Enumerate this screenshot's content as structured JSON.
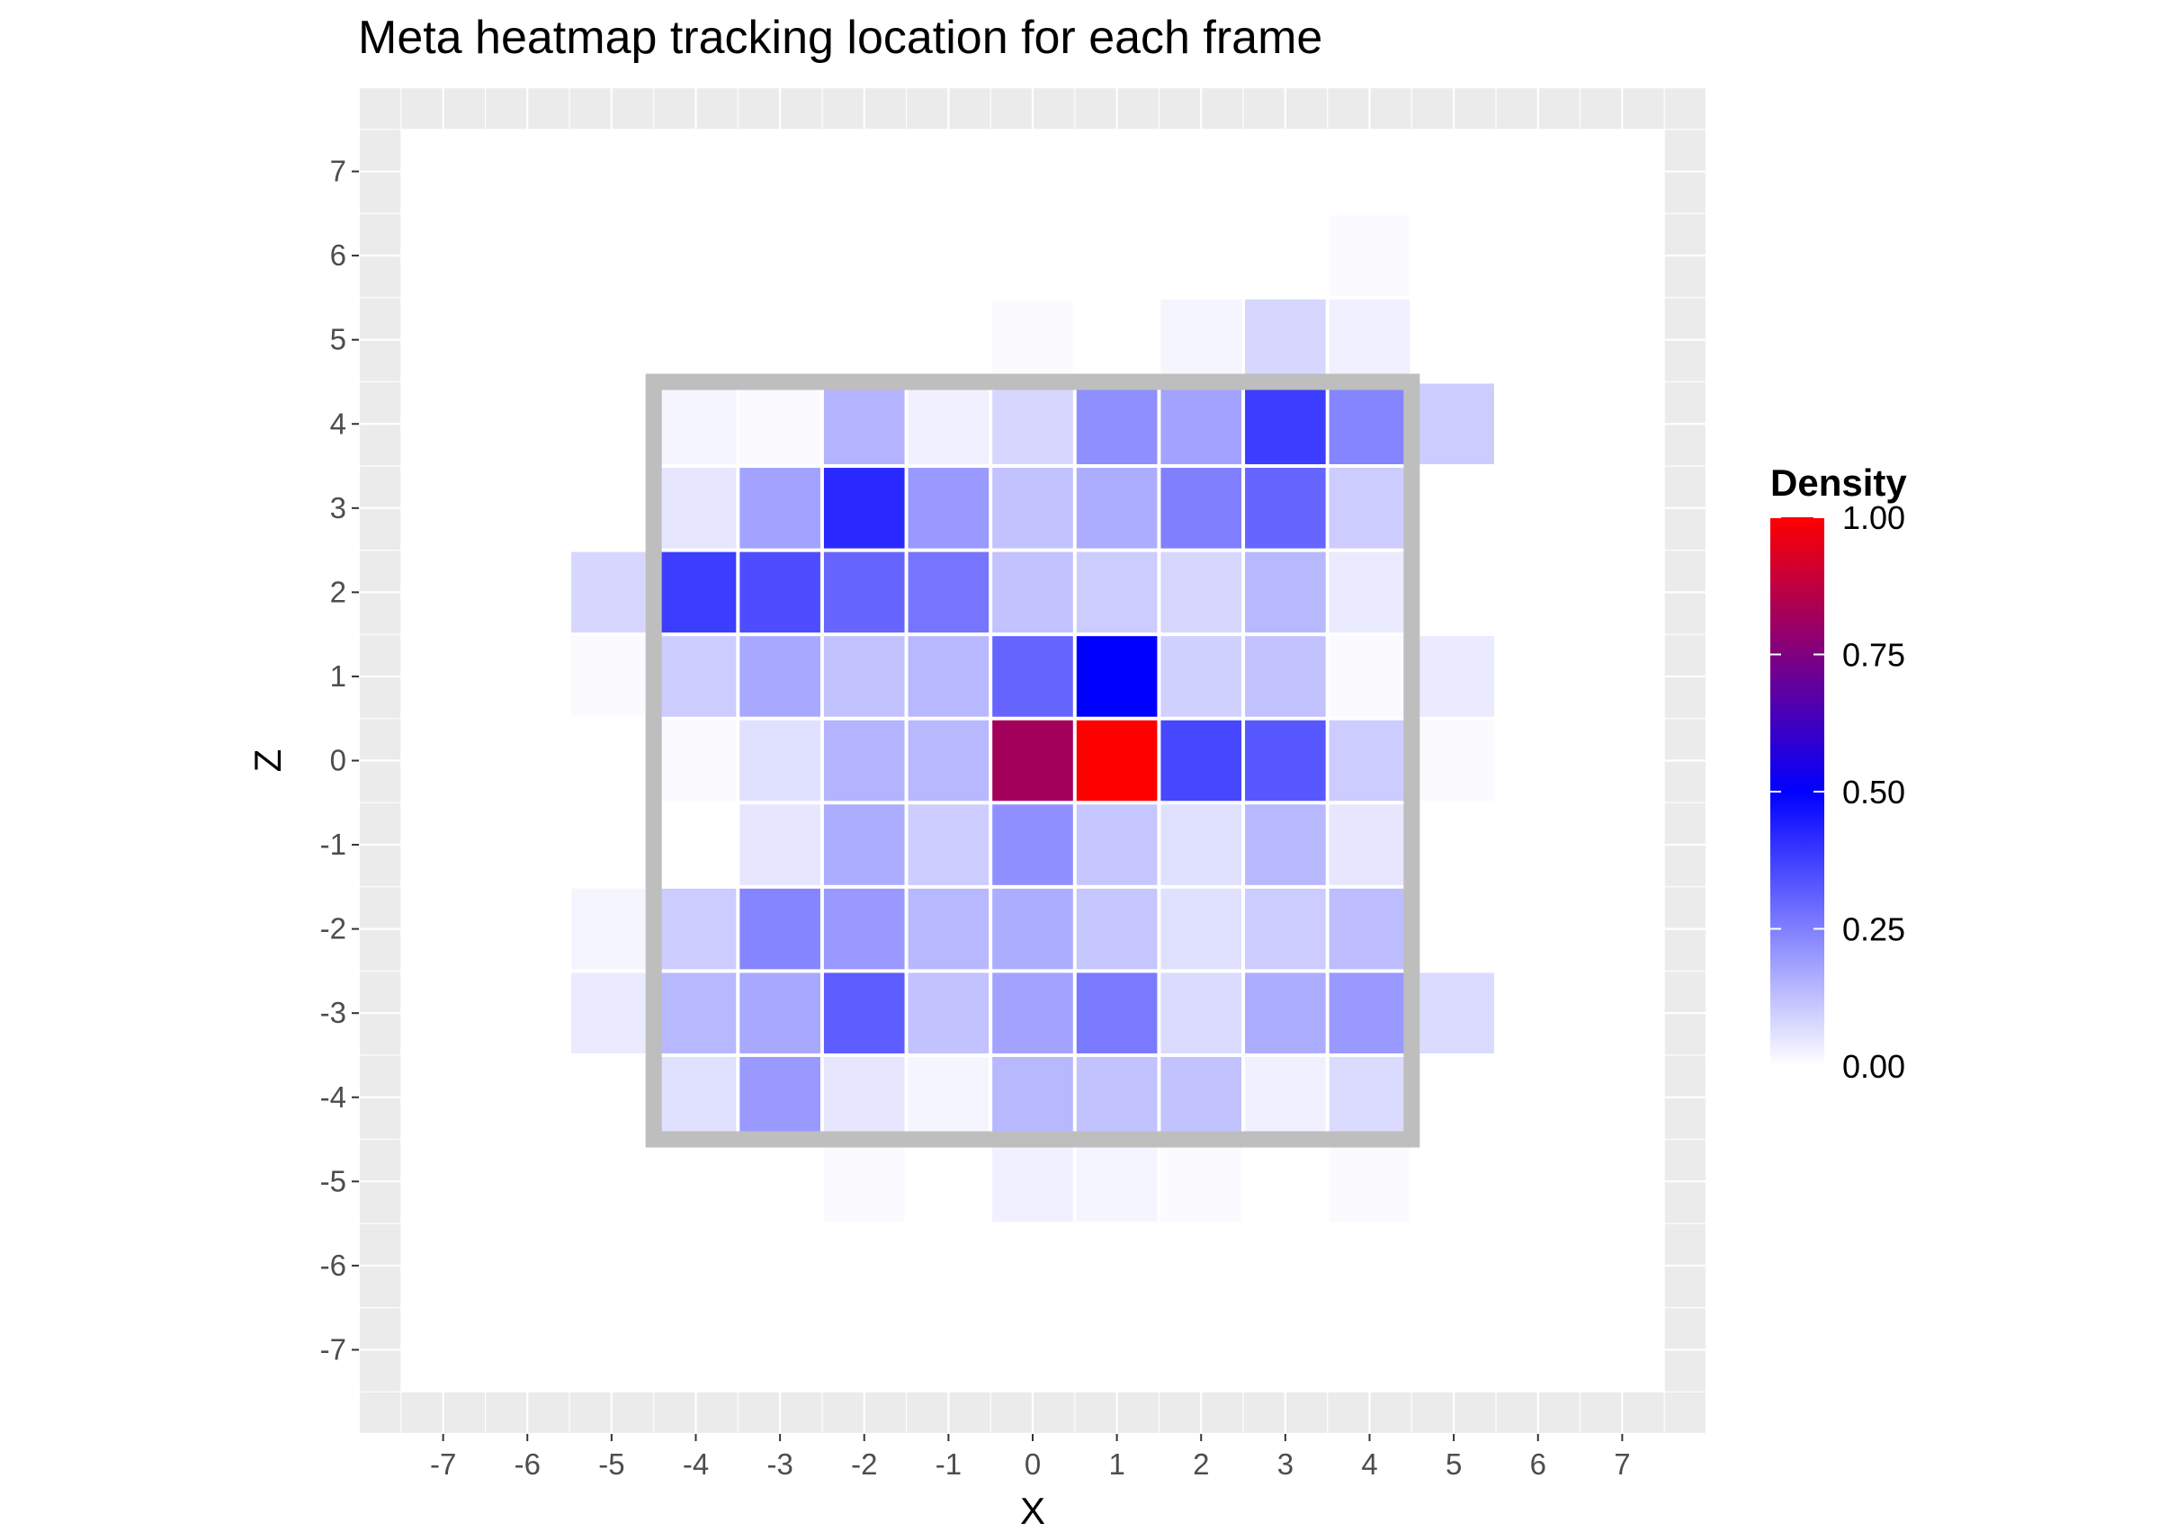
{
  "chart_data": {
    "type": "heatmap",
    "title": "Meta heatmap tracking location for each frame",
    "xlabel": "X",
    "ylabel": "Z",
    "xlim": [
      -8,
      8
    ],
    "ylim": [
      -8,
      8
    ],
    "x_ticks": [
      "-7",
      "-6",
      "-5",
      "-4",
      "-3",
      "-2",
      "-1",
      "0",
      "1",
      "2",
      "3",
      "4",
      "5",
      "6",
      "7"
    ],
    "y_ticks": [
      "7",
      "6",
      "5",
      "4",
      "3",
      "2",
      "1",
      "0",
      "-1",
      "-2",
      "-3",
      "-4",
      "-5",
      "-6",
      "-7"
    ],
    "grid": true,
    "legend": {
      "title": "Density",
      "placement": "right",
      "labels": [
        "1.00",
        "0.75",
        "0.50",
        "0.25",
        "0.00"
      ],
      "colors": [
        "#ffffff",
        "#0000ff",
        "#ff0000"
      ]
    },
    "arena_region": {
      "xmin": -4.5,
      "xmax": 4.5,
      "zmin": -4.5,
      "zmax": 4.5,
      "color": "#bebebe"
    },
    "panel_background": "#ebebeb",
    "inner_background": "#ffffff",
    "cells": [
      {
        "x": 4,
        "z": 6,
        "v": 0.01
      },
      {
        "x": 0,
        "z": 5,
        "v": 0.01
      },
      {
        "x": 2,
        "z": 5,
        "v": 0.02
      },
      {
        "x": 3,
        "z": 5,
        "v": 0.08
      },
      {
        "x": 4,
        "z": 5,
        "v": 0.03
      },
      {
        "x": -4,
        "z": 4,
        "v": 0.02
      },
      {
        "x": -3,
        "z": 4,
        "v": 0.01
      },
      {
        "x": -2,
        "z": 4,
        "v": 0.15
      },
      {
        "x": -1,
        "z": 4,
        "v": 0.03
      },
      {
        "x": 0,
        "z": 4,
        "v": 0.08
      },
      {
        "x": 1,
        "z": 4,
        "v": 0.22
      },
      {
        "x": 2,
        "z": 4,
        "v": 0.18
      },
      {
        "x": 3,
        "z": 4,
        "v": 0.38
      },
      {
        "x": 4,
        "z": 4,
        "v": 0.24
      },
      {
        "x": 5,
        "z": 4,
        "v": 0.1
      },
      {
        "x": -4,
        "z": 3,
        "v": 0.05
      },
      {
        "x": -3,
        "z": 3,
        "v": 0.18
      },
      {
        "x": -2,
        "z": 3,
        "v": 0.42
      },
      {
        "x": -1,
        "z": 3,
        "v": 0.2
      },
      {
        "x": 0,
        "z": 3,
        "v": 0.12
      },
      {
        "x": 1,
        "z": 3,
        "v": 0.16
      },
      {
        "x": 2,
        "z": 3,
        "v": 0.25
      },
      {
        "x": 3,
        "z": 3,
        "v": 0.3
      },
      {
        "x": 4,
        "z": 3,
        "v": 0.1
      },
      {
        "x": -5,
        "z": 2,
        "v": 0.08
      },
      {
        "x": -4,
        "z": 2,
        "v": 0.38
      },
      {
        "x": -3,
        "z": 2,
        "v": 0.35
      },
      {
        "x": -2,
        "z": 2,
        "v": 0.3
      },
      {
        "x": -1,
        "z": 2,
        "v": 0.27
      },
      {
        "x": 0,
        "z": 2,
        "v": 0.12
      },
      {
        "x": 1,
        "z": 2,
        "v": 0.1
      },
      {
        "x": 2,
        "z": 2,
        "v": 0.08
      },
      {
        "x": 3,
        "z": 2,
        "v": 0.14
      },
      {
        "x": 4,
        "z": 2,
        "v": 0.04
      },
      {
        "x": -5,
        "z": 1,
        "v": 0.01
      },
      {
        "x": -4,
        "z": 1,
        "v": 0.1
      },
      {
        "x": -3,
        "z": 1,
        "v": 0.17
      },
      {
        "x": -2,
        "z": 1,
        "v": 0.12
      },
      {
        "x": -1,
        "z": 1,
        "v": 0.14
      },
      {
        "x": 0,
        "z": 1,
        "v": 0.3
      },
      {
        "x": 1,
        "z": 1,
        "v": 0.5
      },
      {
        "x": 2,
        "z": 1,
        "v": 0.09
      },
      {
        "x": 3,
        "z": 1,
        "v": 0.12
      },
      {
        "x": 4,
        "z": 1,
        "v": 0.01
      },
      {
        "x": 5,
        "z": 1,
        "v": 0.04
      },
      {
        "x": -4,
        "z": 0,
        "v": 0.01
      },
      {
        "x": -3,
        "z": 0,
        "v": 0.06
      },
      {
        "x": -2,
        "z": 0,
        "v": 0.15
      },
      {
        "x": -1,
        "z": 0,
        "v": 0.14
      },
      {
        "x": 0,
        "z": 0,
        "v": 0.82
      },
      {
        "x": 1,
        "z": 0,
        "v": 1.0
      },
      {
        "x": 2,
        "z": 0,
        "v": 0.36
      },
      {
        "x": 3,
        "z": 0,
        "v": 0.33
      },
      {
        "x": 4,
        "z": 0,
        "v": 0.1
      },
      {
        "x": 5,
        "z": 0,
        "v": 0.01
      },
      {
        "x": -3,
        "z": -1,
        "v": 0.05
      },
      {
        "x": -2,
        "z": -1,
        "v": 0.16
      },
      {
        "x": -1,
        "z": -1,
        "v": 0.1
      },
      {
        "x": 0,
        "z": -1,
        "v": 0.22
      },
      {
        "x": 1,
        "z": -1,
        "v": 0.11
      },
      {
        "x": 2,
        "z": -1,
        "v": 0.06
      },
      {
        "x": 3,
        "z": -1,
        "v": 0.14
      },
      {
        "x": 4,
        "z": -1,
        "v": 0.05
      },
      {
        "x": -5,
        "z": -2,
        "v": 0.02
      },
      {
        "x": -4,
        "z": -2,
        "v": 0.1
      },
      {
        "x": -3,
        "z": -2,
        "v": 0.24
      },
      {
        "x": -2,
        "z": -2,
        "v": 0.2
      },
      {
        "x": -1,
        "z": -2,
        "v": 0.14
      },
      {
        "x": 0,
        "z": -2,
        "v": 0.16
      },
      {
        "x": 1,
        "z": -2,
        "v": 0.11
      },
      {
        "x": 2,
        "z": -2,
        "v": 0.06
      },
      {
        "x": 3,
        "z": -2,
        "v": 0.1
      },
      {
        "x": 4,
        "z": -2,
        "v": 0.13
      },
      {
        "x": -5,
        "z": -3,
        "v": 0.04
      },
      {
        "x": -4,
        "z": -3,
        "v": 0.14
      },
      {
        "x": -3,
        "z": -3,
        "v": 0.17
      },
      {
        "x": -2,
        "z": -3,
        "v": 0.32
      },
      {
        "x": -1,
        "z": -3,
        "v": 0.12
      },
      {
        "x": 0,
        "z": -3,
        "v": 0.18
      },
      {
        "x": 1,
        "z": -3,
        "v": 0.26
      },
      {
        "x": 2,
        "z": -3,
        "v": 0.07
      },
      {
        "x": 3,
        "z": -3,
        "v": 0.16
      },
      {
        "x": 4,
        "z": -3,
        "v": 0.2
      },
      {
        "x": 5,
        "z": -3,
        "v": 0.07
      },
      {
        "x": -4,
        "z": -4,
        "v": 0.06
      },
      {
        "x": -3,
        "z": -4,
        "v": 0.2
      },
      {
        "x": -2,
        "z": -4,
        "v": 0.05
      },
      {
        "x": -1,
        "z": -4,
        "v": 0.02
      },
      {
        "x": 0,
        "z": -4,
        "v": 0.14
      },
      {
        "x": 1,
        "z": -4,
        "v": 0.12
      },
      {
        "x": 2,
        "z": -4,
        "v": 0.12
      },
      {
        "x": 3,
        "z": -4,
        "v": 0.03
      },
      {
        "x": 4,
        "z": -4,
        "v": 0.07
      },
      {
        "x": -2,
        "z": -5,
        "v": 0.01
      },
      {
        "x": 0,
        "z": -5,
        "v": 0.03
      },
      {
        "x": 1,
        "z": -5,
        "v": 0.02
      },
      {
        "x": 2,
        "z": -5,
        "v": 0.01
      },
      {
        "x": 4,
        "z": -5,
        "v": 0.01
      }
    ]
  }
}
